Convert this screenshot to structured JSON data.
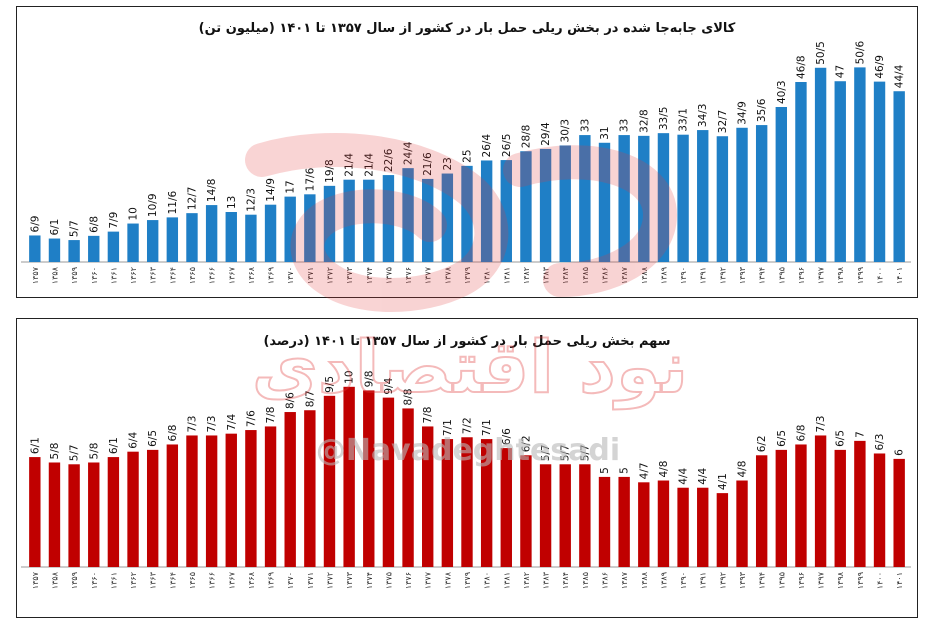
{
  "chart_data": [
    {
      "type": "bar",
      "title": "کالای جابه‌جا شده در بخش ریلی حمل بار در کشور از سال ۱۳۵۷ تا ۱۴۰۱ (میلیون تن)",
      "xlabel": "",
      "ylabel": "",
      "bar_color": "#1f7fc6",
      "categories": [
        "۱۳۵۷",
        "۱۳۵۸",
        "۱۳۵۹",
        "۱۳۶۰",
        "۱۳۶۱",
        "۱۳۶۲",
        "۱۳۶۳",
        "۱۳۶۴",
        "۱۳۶۵",
        "۱۳۶۶",
        "۱۳۶۷",
        "۱۳۶۸",
        "۱۳۶۹",
        "۱۳۷۰",
        "۱۳۷۱",
        "۱۳۷۲",
        "۱۳۷۳",
        "۱۳۷۴",
        "۱۳۷۵",
        "۱۳۷۶",
        "۱۳۷۷",
        "۱۳۷۸",
        "۱۳۷۹",
        "۱۳۸۰",
        "۱۳۸۱",
        "۱۳۸۲",
        "۱۳۸۳",
        "۱۳۸۴",
        "۱۳۸۵",
        "۱۳۸۶",
        "۱۳۸۷",
        "۱۳۸۸",
        "۱۳۸۹",
        "۱۳۹۰",
        "۱۳۹۱",
        "۱۳۹۲",
        "۱۳۹۳",
        "۱۳۹۴",
        "۱۳۹۵",
        "۱۳۹۶",
        "۱۳۹۷",
        "۱۳۹۸",
        "۱۳۹۹",
        "۱۴۰۰",
        "۱۴۰۱"
      ],
      "values": [
        6.9,
        6.1,
        5.7,
        6.8,
        7.9,
        10,
        10.9,
        11.6,
        12.7,
        14.8,
        13,
        12.3,
        14.9,
        17,
        17.6,
        19.8,
        21.4,
        21.4,
        22.6,
        24.4,
        21.6,
        23,
        25,
        26.4,
        26.5,
        28.8,
        29.4,
        30.3,
        33,
        31,
        33,
        32.8,
        33.5,
        33.1,
        34.3,
        32.7,
        34.9,
        35.6,
        40.3,
        46.8,
        50.5,
        47,
        50.6,
        46.9,
        44.4
      ],
      "labels": [
        "6/9",
        "6/1",
        "5/7",
        "6/8",
        "7/9",
        "10",
        "10/9",
        "11/6",
        "12/7",
        "14/8",
        "13",
        "12/3",
        "14/9",
        "17",
        "17/6",
        "19/8",
        "21/4",
        "21/4",
        "22/6",
        "24/4",
        "21/6",
        "23",
        "25",
        "26/4",
        "26/5",
        "28/8",
        "29/4",
        "30/3",
        "33",
        "31",
        "33",
        "32/8",
        "33/5",
        "33/1",
        "34/3",
        "32/7",
        "34/9",
        "35/6",
        "40/3",
        "46/8",
        "50/5",
        "47",
        "50/6",
        "46/9",
        "44/4"
      ],
      "ylim": [
        0,
        52
      ]
    },
    {
      "type": "bar",
      "title": "سهم بخش ریلی حمل بار در کشور از سال ۱۳۵۷ تا ۱۴۰۱ (درصد)",
      "xlabel": "",
      "ylabel": "",
      "bar_color": "#c00000",
      "categories": [
        "۱۳۵۷",
        "۱۳۵۸",
        "۱۳۵۹",
        "۱۳۶۰",
        "۱۳۶۱",
        "۱۳۶۲",
        "۱۳۶۳",
        "۱۳۶۴",
        "۱۳۶۵",
        "۱۳۶۶",
        "۱۳۶۷",
        "۱۳۶۸",
        "۱۳۶۹",
        "۱۳۷۰",
        "۱۳۷۱",
        "۱۳۷۲",
        "۱۳۷۳",
        "۱۳۷۴",
        "۱۳۷۵",
        "۱۳۷۶",
        "۱۳۷۷",
        "۱۳۷۸",
        "۱۳۷۹",
        "۱۳۸۰",
        "۱۳۸۱",
        "۱۳۸۲",
        "۱۳۸۳",
        "۱۳۸۴",
        "۱۳۸۵",
        "۱۳۸۶",
        "۱۳۸۷",
        "۱۳۸۸",
        "۱۳۸۹",
        "۱۳۹۰",
        "۱۳۹۱",
        "۱۳۹۲",
        "۱۳۹۳",
        "۱۳۹۴",
        "۱۳۹۵",
        "۱۳۹۶",
        "۱۳۹۷",
        "۱۳۹۸",
        "۱۳۹۹",
        "۱۴۰۰",
        "۱۴۰۱"
      ],
      "values": [
        6.1,
        5.8,
        5.7,
        5.8,
        6.1,
        6.4,
        6.5,
        6.8,
        7.3,
        7.3,
        7.4,
        7.6,
        7.8,
        8.6,
        8.7,
        9.5,
        10,
        9.8,
        9.4,
        8.8,
        7.8,
        7.1,
        7.2,
        7.1,
        6.6,
        6.2,
        5.7,
        5.7,
        5.7,
        5,
        5,
        4.7,
        4.8,
        4.4,
        4.4,
        4.1,
        4.8,
        6.2,
        6.5,
        6.8,
        7.3,
        6.5,
        7,
        6.3,
        6
      ],
      "labels": [
        "6/1",
        "5/8",
        "5/7",
        "5/8",
        "6/1",
        "6/4",
        "6/5",
        "6/8",
        "7/3",
        "7/3",
        "7/4",
        "7/6",
        "7/8",
        "8/6",
        "8/7",
        "9/5",
        "10",
        "9/8",
        "9/4",
        "8/8",
        "7/8",
        "7/1",
        "7/2",
        "7/1",
        "6/6",
        "6/2",
        "5/7",
        "5/7",
        "5/7",
        "5",
        "5",
        "4/7",
        "4/8",
        "4/4",
        "4/4",
        "4/1",
        "4/8",
        "6/2",
        "6/5",
        "6/8",
        "7/3",
        "6/5",
        "7",
        "6/3",
        "6"
      ],
      "ylim": [
        0,
        10.6
      ]
    }
  ],
  "watermark": {
    "logo_text": "نود اقتصادی",
    "handle": "@Navadeghtesadi"
  }
}
